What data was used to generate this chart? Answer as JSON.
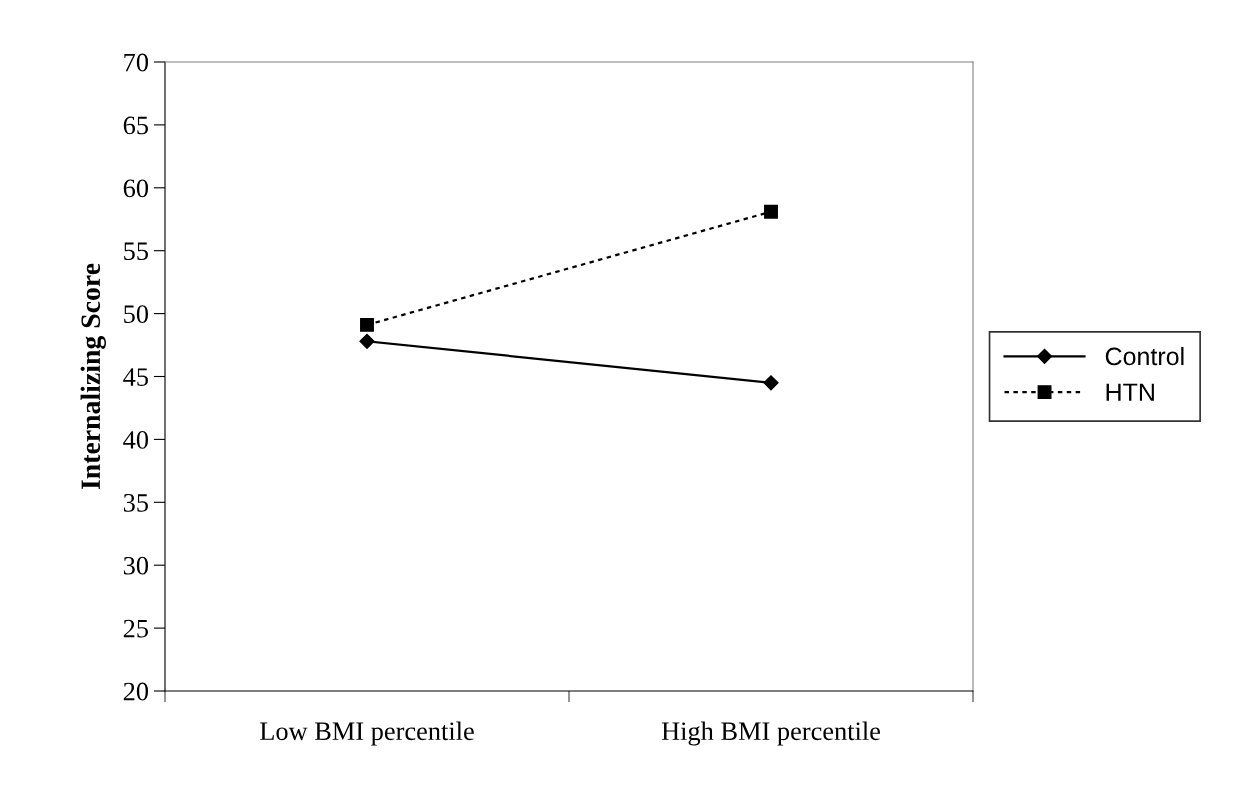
{
  "chart_data": {
    "type": "line",
    "ylabel": "Internalizing Score",
    "categories": [
      "Low BMI percentile",
      "High BMI percentile"
    ],
    "series": [
      {
        "name": "Control",
        "color": "#000000",
        "values": [
          47.8,
          44.5
        ],
        "marker": "diamond",
        "line_style": "solid"
      },
      {
        "name": "HTN",
        "color": "#000000",
        "values": [
          49.1,
          58.1
        ],
        "marker": "square",
        "line_style": "dotted"
      }
    ],
    "ylim": [
      20,
      70
    ],
    "yticks": [
      20,
      25,
      30,
      35,
      40,
      45,
      50,
      55,
      60,
      65,
      70
    ],
    "grid": false,
    "legend": "right"
  }
}
